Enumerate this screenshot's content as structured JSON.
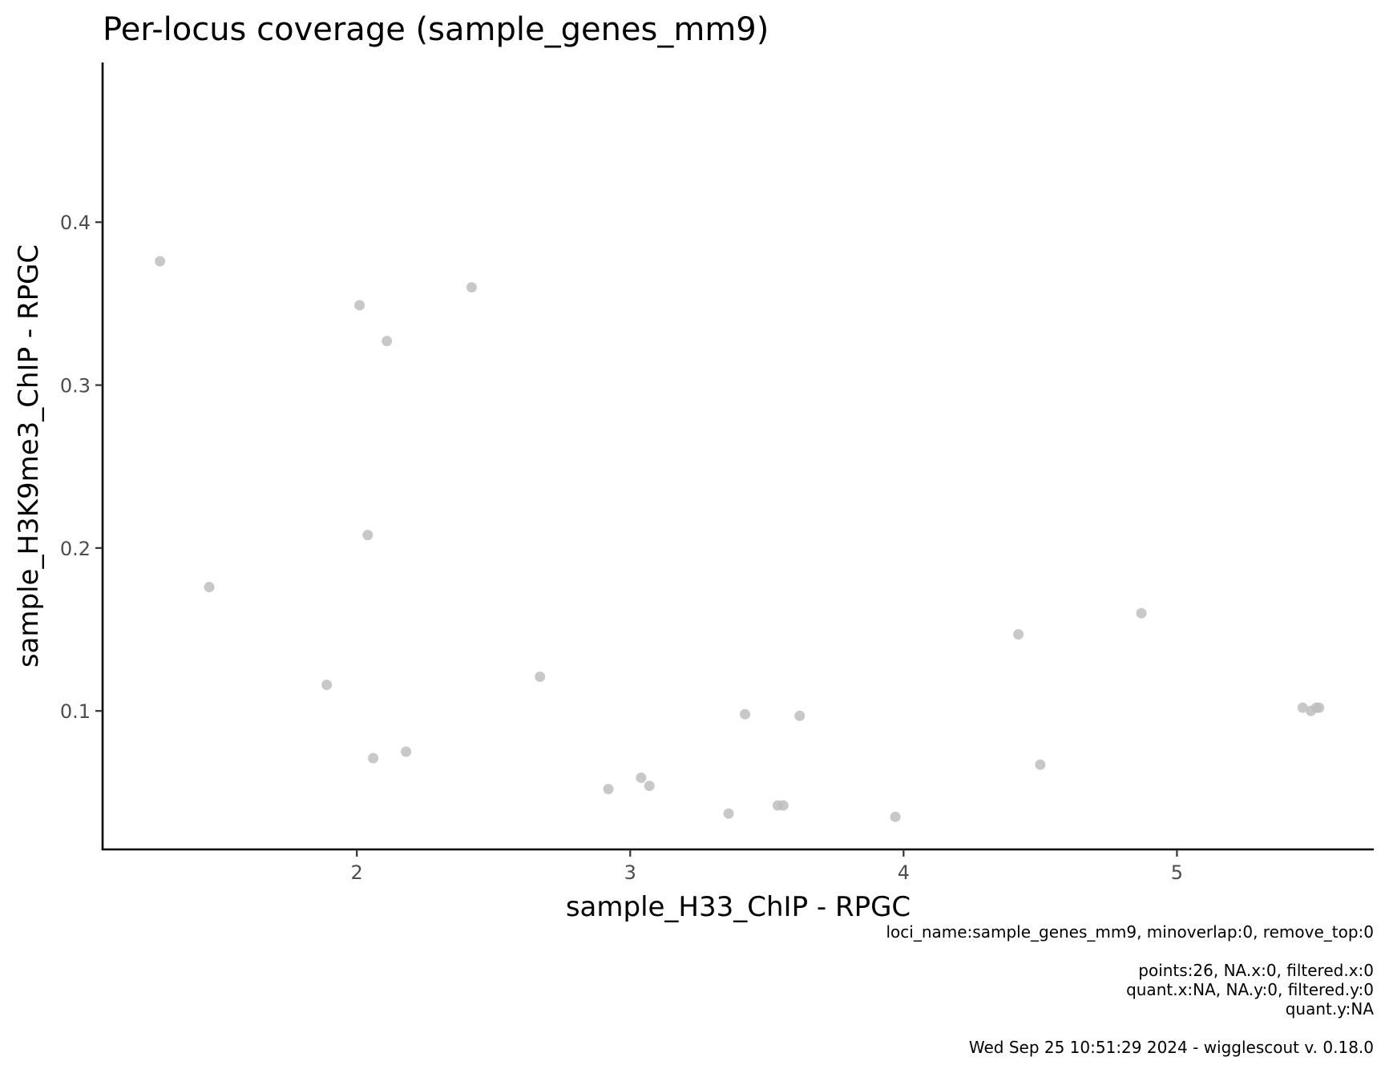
{
  "chart_data": {
    "type": "scatter",
    "title": "Per-locus coverage (sample_genes_mm9)",
    "xlabel": "sample_H33_ChIP - RPGC",
    "ylabel": "sample_H3K9me3_ChIP - RPGC",
    "xlim": [
      1.07,
      5.72
    ],
    "ylim": [
      0.015,
      0.498
    ],
    "x_ticks": [
      2,
      3,
      4,
      5
    ],
    "x_tick_labels": [
      "2",
      "3",
      "4",
      "5"
    ],
    "y_ticks": [
      0.1,
      0.2,
      0.3,
      0.4
    ],
    "y_tick_labels": [
      "0.1",
      "0.2",
      "0.3",
      "0.4"
    ],
    "grid": false,
    "point_color": "#bebebe",
    "points": [
      {
        "x": 1.28,
        "y": 0.376
      },
      {
        "x": 1.46,
        "y": 0.176
      },
      {
        "x": 1.89,
        "y": 0.116
      },
      {
        "x": 2.01,
        "y": 0.349
      },
      {
        "x": 2.04,
        "y": 0.208
      },
      {
        "x": 2.06,
        "y": 0.071
      },
      {
        "x": 2.11,
        "y": 0.327
      },
      {
        "x": 2.18,
        "y": 0.075
      },
      {
        "x": 2.42,
        "y": 0.36
      },
      {
        "x": 2.67,
        "y": 0.121
      },
      {
        "x": 2.92,
        "y": 0.052
      },
      {
        "x": 3.04,
        "y": 0.059
      },
      {
        "x": 3.07,
        "y": 0.054
      },
      {
        "x": 3.36,
        "y": 0.037
      },
      {
        "x": 3.42,
        "y": 0.098
      },
      {
        "x": 3.54,
        "y": 0.042
      },
      {
        "x": 3.56,
        "y": 0.042
      },
      {
        "x": 3.62,
        "y": 0.097
      },
      {
        "x": 3.97,
        "y": 0.035
      },
      {
        "x": 4.42,
        "y": 0.147
      },
      {
        "x": 4.5,
        "y": 0.067
      },
      {
        "x": 4.87,
        "y": 0.16
      },
      {
        "x": 5.46,
        "y": 0.102
      },
      {
        "x": 5.49,
        "y": 0.1
      },
      {
        "x": 5.51,
        "y": 0.102
      },
      {
        "x": 5.52,
        "y": 0.102
      }
    ]
  },
  "caption": [
    "loci_name:sample_genes_mm9, minoverlap:0, remove_top:0",
    "",
    "points:26, NA.x:0, filtered.x:0",
    "quant.x:NA, NA.y:0, filtered.y:0",
    "quant.y:NA",
    "",
    "Wed Sep 25 10:51:29 2024 - wigglescout v. 0.18.0"
  ]
}
